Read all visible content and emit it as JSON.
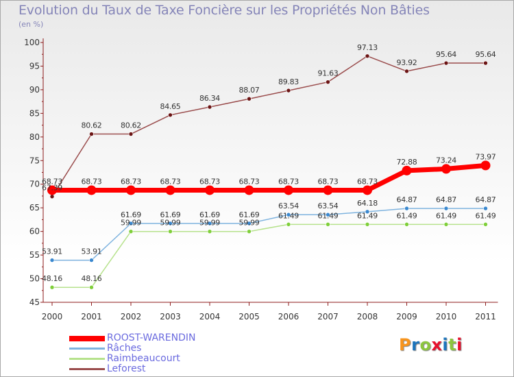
{
  "title": "Evolution du Taux de Taxe Foncière sur les Propriétés Non Bâties",
  "subtitle": "(en %)",
  "logo_text": "Proxiti",
  "colors": {
    "logo": [
      "#f7941d",
      "#1c75bc",
      "#8dc63f",
      "#e8112d",
      "#1c75bc",
      "#8dc63f",
      "#e8112d"
    ]
  },
  "chart_data": {
    "type": "line",
    "categories": [
      "2000",
      "2001",
      "2002",
      "2003",
      "2004",
      "2005",
      "2006",
      "2007",
      "2008",
      "2009",
      "2010",
      "2011"
    ],
    "ylim": [
      45,
      100
    ],
    "yticks": [
      45,
      50,
      55,
      60,
      65,
      70,
      75,
      80,
      85,
      90,
      95,
      100
    ],
    "grid": false,
    "legend_position": "bottom-left",
    "series": [
      {
        "name": "ROOST-WARENDIN",
        "color": "#ff0000",
        "marker": "#ff0000",
        "width": 7,
        "marker_r": 7,
        "values": [
          68.73,
          68.73,
          68.73,
          68.73,
          68.73,
          68.73,
          68.73,
          68.73,
          68.73,
          72.88,
          73.24,
          73.97
        ],
        "labels": [
          "68.73",
          "68.73",
          "68.73",
          "68.73",
          "68.73",
          "68.73",
          "68.73",
          "68.73",
          "68.73",
          "72.88",
          "73.24",
          "73.97"
        ]
      },
      {
        "name": "Râches",
        "color": "#7eb3df",
        "marker": "#3a88cf",
        "width": 1.5,
        "marker_r": 3,
        "values": [
          53.91,
          53.91,
          61.69,
          61.69,
          61.69,
          61.69,
          63.54,
          63.54,
          64.18,
          64.87,
          64.87,
          64.87
        ],
        "labels": [
          "53.91",
          "53.91",
          "61.69",
          "61.69",
          "61.69",
          "61.69",
          "63.54",
          "63.54",
          "64.18",
          "64.87",
          "64.87",
          "64.87"
        ]
      },
      {
        "name": "Raimbeaucourt",
        "color": "#b6e28c",
        "marker": "#7fcf3a",
        "width": 1.5,
        "marker_r": 3,
        "values": [
          48.16,
          48.16,
          59.99,
          59.99,
          59.99,
          59.99,
          61.49,
          61.49,
          61.49,
          61.49,
          61.49,
          61.49
        ],
        "labels": [
          "48.16",
          "48.16",
          "59.99",
          "59.99",
          "59.99",
          "59.99",
          "61.49",
          "61.49",
          "61.49",
          "61.49",
          "61.49",
          "61.49"
        ]
      },
      {
        "name": "Leforest",
        "color": "#9a4c4c",
        "marker": "#6b1414",
        "width": 1.5,
        "marker_r": 3,
        "values": [
          67.39,
          80.62,
          80.62,
          84.65,
          86.34,
          88.07,
          89.83,
          91.63,
          97.13,
          93.92,
          95.64,
          95.64
        ],
        "labels": [
          "67.39",
          "80.62",
          "80.62",
          "84.65",
          "86.34",
          "88.07",
          "89.83",
          "91.63",
          "97.13",
          "93.92",
          "95.64",
          "95.64"
        ]
      }
    ]
  }
}
